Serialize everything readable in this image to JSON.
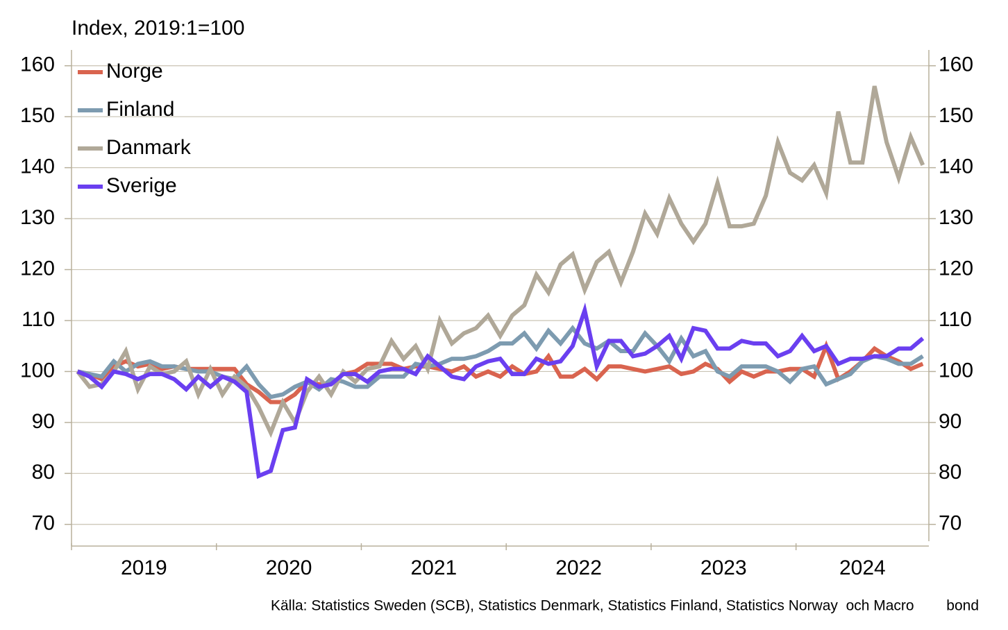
{
  "chart_data": {
    "type": "line",
    "ylabel": "Index, 2019:1=100",
    "source": "Källa: Statistics Sweden (SCB), Statistics Denmark, Statistics Finland, Statistics Norway  och Macro        bond",
    "categories": [
      "2019",
      null,
      null,
      null,
      null,
      null,
      null,
      null,
      null,
      null,
      null,
      null,
      "2020",
      null,
      null,
      null,
      null,
      null,
      null,
      null,
      null,
      null,
      null,
      null,
      "2021",
      null,
      null,
      null,
      null,
      null,
      null,
      null,
      null,
      null,
      null,
      null,
      "2022",
      null,
      null,
      null,
      null,
      null,
      null,
      null,
      null,
      null,
      null,
      null,
      "2023",
      null,
      null,
      null,
      null,
      null,
      null,
      null,
      null,
      null,
      null,
      null,
      "2024",
      null,
      null,
      null,
      null,
      null,
      null,
      null,
      null,
      null,
      null
    ],
    "ylim": [
      66.7,
      163.1
    ],
    "yticks": [
      70,
      80,
      90,
      100,
      110,
      120,
      130,
      140,
      150,
      160
    ],
    "grid": true,
    "legend": "upper left",
    "series": [
      {
        "name": "Norge",
        "color": "#d9644f",
        "values": [
          100,
          99.5,
          98.5,
          101,
          102,
          101,
          101.5,
          100.5,
          101,
          100.5,
          100.5,
          100.5,
          100.5,
          100.5,
          97.5,
          96,
          94,
          94,
          95.5,
          98,
          97.5,
          97.5,
          99.5,
          100,
          101.5,
          101.5,
          101.5,
          100.5,
          101,
          101,
          100.5,
          100,
          101,
          99,
          100,
          99,
          101,
          99.5,
          100,
          103,
          99,
          99,
          100.5,
          98.5,
          101,
          101,
          100.5,
          100,
          100.5,
          101,
          99.5,
          100,
          101.5,
          100.5,
          98,
          100,
          99,
          100,
          100,
          100.5,
          100.5,
          99,
          105,
          98.5,
          100,
          102,
          104.5,
          103,
          102,
          100.5,
          101.5
        ]
      },
      {
        "name": "Finland",
        "color": "#7d9bb0",
        "values": [
          100,
          99.5,
          99,
          102,
          100,
          101.5,
          102,
          101,
          101,
          100.5,
          100,
          100,
          99,
          98.5,
          101,
          97.5,
          95,
          95.5,
          97,
          98,
          96.5,
          98.5,
          98,
          97,
          97,
          99,
          99,
          99,
          101.5,
          101,
          101.5,
          102.5,
          102.5,
          103,
          104,
          105.5,
          105.5,
          107.5,
          104.5,
          108,
          105.5,
          108.5,
          105.5,
          104.5,
          106,
          104,
          104,
          107.5,
          105,
          102,
          106.5,
          103,
          104,
          100,
          99,
          101,
          101,
          101,
          100,
          98,
          100.5,
          101,
          97.5,
          98.5,
          99.5,
          102,
          103,
          102.5,
          101.5,
          101.5,
          103
        ]
      },
      {
        "name": "Danmark",
        "color": "#b0a898",
        "values": [
          100,
          97,
          97.5,
          100,
          104,
          96.5,
          101,
          99.5,
          100,
          102,
          95.5,
          100.5,
          95.5,
          99,
          97,
          93,
          88,
          94,
          90,
          96,
          99,
          95.5,
          100,
          98,
          100.5,
          101,
          106,
          102.5,
          105,
          100.5,
          110,
          105.5,
          107.5,
          108.5,
          111,
          107,
          111,
          113,
          119,
          115.5,
          121,
          123,
          116,
          121.5,
          123.5,
          117.5,
          123.5,
          131,
          127,
          134,
          129,
          125.5,
          129,
          137,
          128.5,
          128.5,
          129,
          134.5,
          145,
          139,
          137.5,
          140.5,
          135,
          151,
          141,
          141,
          156,
          145,
          138,
          146,
          140.5
        ]
      },
      {
        "name": "Sverige",
        "color": "#6a3ff0",
        "values": [
          100,
          99,
          97,
          100,
          99.5,
          98.5,
          99.5,
          99.5,
          98.5,
          96.5,
          99,
          97,
          99,
          98,
          96,
          79.5,
          80.5,
          88.5,
          89,
          98.5,
          97,
          97.5,
          99.5,
          99.5,
          98,
          100,
          100.5,
          100.5,
          99.5,
          103,
          101,
          99,
          98.5,
          101,
          102,
          102.5,
          99.5,
          99.5,
          102.5,
          101.5,
          102,
          105,
          112,
          101,
          106,
          106,
          103,
          103.5,
          105,
          107,
          102.5,
          108.5,
          108,
          104.5,
          104.5,
          106,
          105.5,
          105.5,
          103,
          104,
          107,
          104,
          105,
          101.5,
          102.5,
          102.5,
          103,
          103,
          104.5,
          104.5,
          106.5
        ]
      }
    ]
  }
}
